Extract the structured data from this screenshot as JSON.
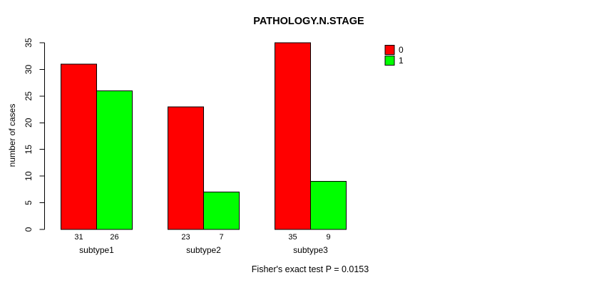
{
  "chart_data": {
    "type": "bar",
    "title": "PATHOLOGY.N.STAGE",
    "xlabel": "",
    "ylabel": "number of cases",
    "categories": [
      "subtype1",
      "subtype2",
      "subtype3"
    ],
    "series": [
      {
        "name": "0",
        "color": "#FF0000",
        "values": [
          31,
          23,
          35
        ]
      },
      {
        "name": "1",
        "color": "#00FF00",
        "values": [
          26,
          7,
          9
        ]
      }
    ],
    "show_values_below_bars": true,
    "ylim": [
      0,
      35
    ],
    "yticks": [
      0,
      5,
      10,
      15,
      20,
      25,
      30,
      35
    ],
    "grid": false,
    "legend_position": "top-right",
    "bar_border_color": "#000000",
    "axis_color": "#000000",
    "background": "#FFFFFF",
    "caption": "Fisher's exact test P = 0.0153"
  }
}
